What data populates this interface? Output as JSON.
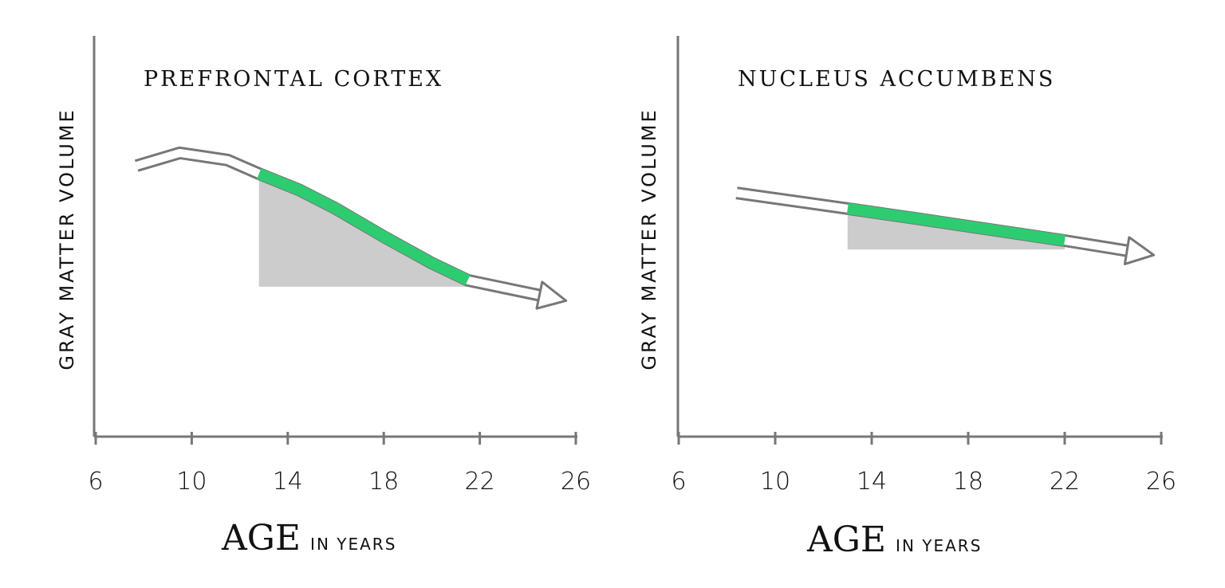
{
  "chart_data": [
    {
      "type": "line",
      "title": "PREFRONTAL CORTEX",
      "ylabel": "GRAY MATTER VOLUME",
      "xlabel_main": "AGE",
      "xlabel_sub": "IN YEARS",
      "xticks": [
        "6",
        "10",
        "14",
        "18",
        "22",
        "26"
      ],
      "xlim": [
        6,
        26
      ],
      "ylim": [
        0,
        100
      ],
      "y_units": "relative (no tick labels shown)",
      "x": [
        7.7,
        9.5,
        11.5,
        12.8,
        14.5,
        16,
        18,
        20,
        21.5,
        23.5,
        25.2
      ],
      "y": [
        67.6,
        70.8,
        69,
        65.6,
        61.5,
        56.9,
        49.9,
        43.3,
        39,
        36.5,
        34.4
      ],
      "highlight_range": [
        12.8,
        21.5
      ],
      "shaded_base": 37.4,
      "colors": {
        "highlight": "#2ecc71",
        "shade": "#cccccc",
        "line": "#777777"
      }
    },
    {
      "type": "line",
      "title": "NUCLEUS ACCUMBENS",
      "ylabel": "GRAY MATTER VOLUME",
      "xlabel_main": "AGE",
      "xlabel_sub": "IN YEARS",
      "xticks": [
        "6",
        "10",
        "14",
        "18",
        "22",
        "26"
      ],
      "xlim": [
        6,
        26
      ],
      "ylim": [
        0,
        100
      ],
      "y_units": "relative (no tick labels shown)",
      "x": [
        8.4,
        13,
        16,
        19,
        22,
        25.3
      ],
      "y": [
        60.8,
        56.9,
        54.3,
        51.6,
        48.9,
        45.7
      ],
      "highlight_range": [
        13,
        22
      ],
      "shaded_base": 46.7,
      "colors": {
        "highlight": "#2ecc71",
        "shade": "#cccccc",
        "line": "#777777"
      }
    }
  ]
}
